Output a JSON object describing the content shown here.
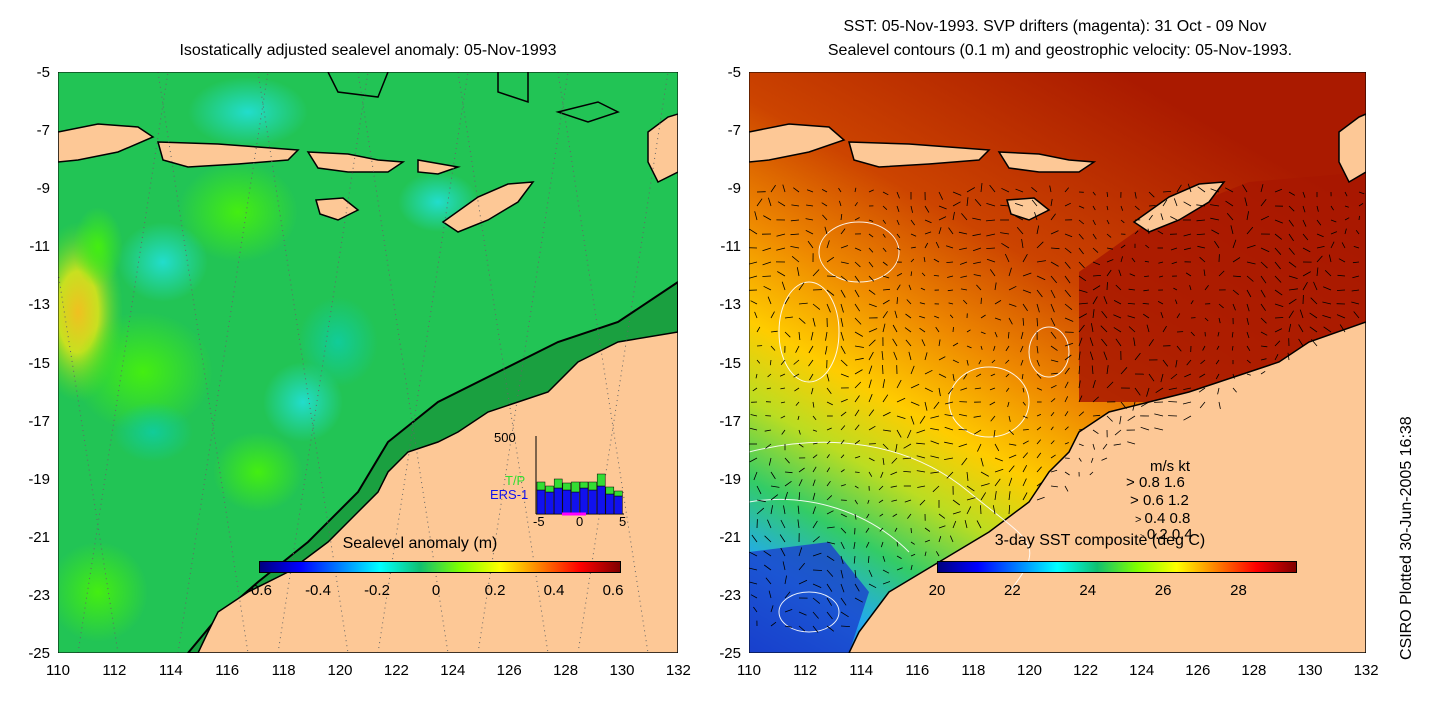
{
  "left_panel": {
    "title": "Isostatically adjusted sealevel anomaly: 05-Nov-1993",
    "colorbar": {
      "label": "Sealevel anomaly (m)",
      "ticks": [
        "-0.6",
        "-0.4",
        "-0.2",
        "0",
        "0.2",
        "0.4",
        "0.6"
      ],
      "range": [
        -0.6,
        0.6
      ]
    },
    "inset_histogram": {
      "ymax_label": "500",
      "x_ticks": [
        "-5",
        "0",
        "5"
      ],
      "legend_tp": "T/P",
      "legend_ers": "ERS-1",
      "tp_color": "#33dd33",
      "ers_color": "#1111ee",
      "marker_color": "#ff00ff"
    }
  },
  "right_panel": {
    "title_line1": "SST: 05-Nov-1993. SVP drifters (magenta): 31 Oct - 09 Nov",
    "title_line2": "Sealevel contours (0.1 m) and geostrophic velocity: 05-Nov-1993.",
    "colorbar": {
      "label": "3-day SST composite (deg C)",
      "ticks": [
        "20",
        "22",
        "24",
        "26",
        "28"
      ],
      "range": [
        20,
        29.5
      ]
    },
    "velocity_legend": {
      "header": "m/s  kt",
      "rows": [
        "0.8  1.6",
        "0.6  1.2",
        "0.4  0.8",
        "0.2  0.4"
      ]
    }
  },
  "axes": {
    "x_ticks": [
      "110",
      "112",
      "114",
      "116",
      "118",
      "120",
      "122",
      "124",
      "126",
      "128",
      "130",
      "132"
    ],
    "y_ticks": [
      "-5",
      "-7",
      "-9",
      "-11",
      "-13",
      "-15",
      "-17",
      "-19",
      "-21",
      "-23",
      "-25"
    ],
    "lon_range": [
      110,
      132
    ],
    "lat_range": [
      -25,
      -5
    ]
  },
  "side_note": "CSIRO Plotted 30-Jun-2005 16:38",
  "colors": {
    "land": "#fdc896",
    "sla_background": "#11bb55",
    "sst_background": "#cc4400"
  }
}
